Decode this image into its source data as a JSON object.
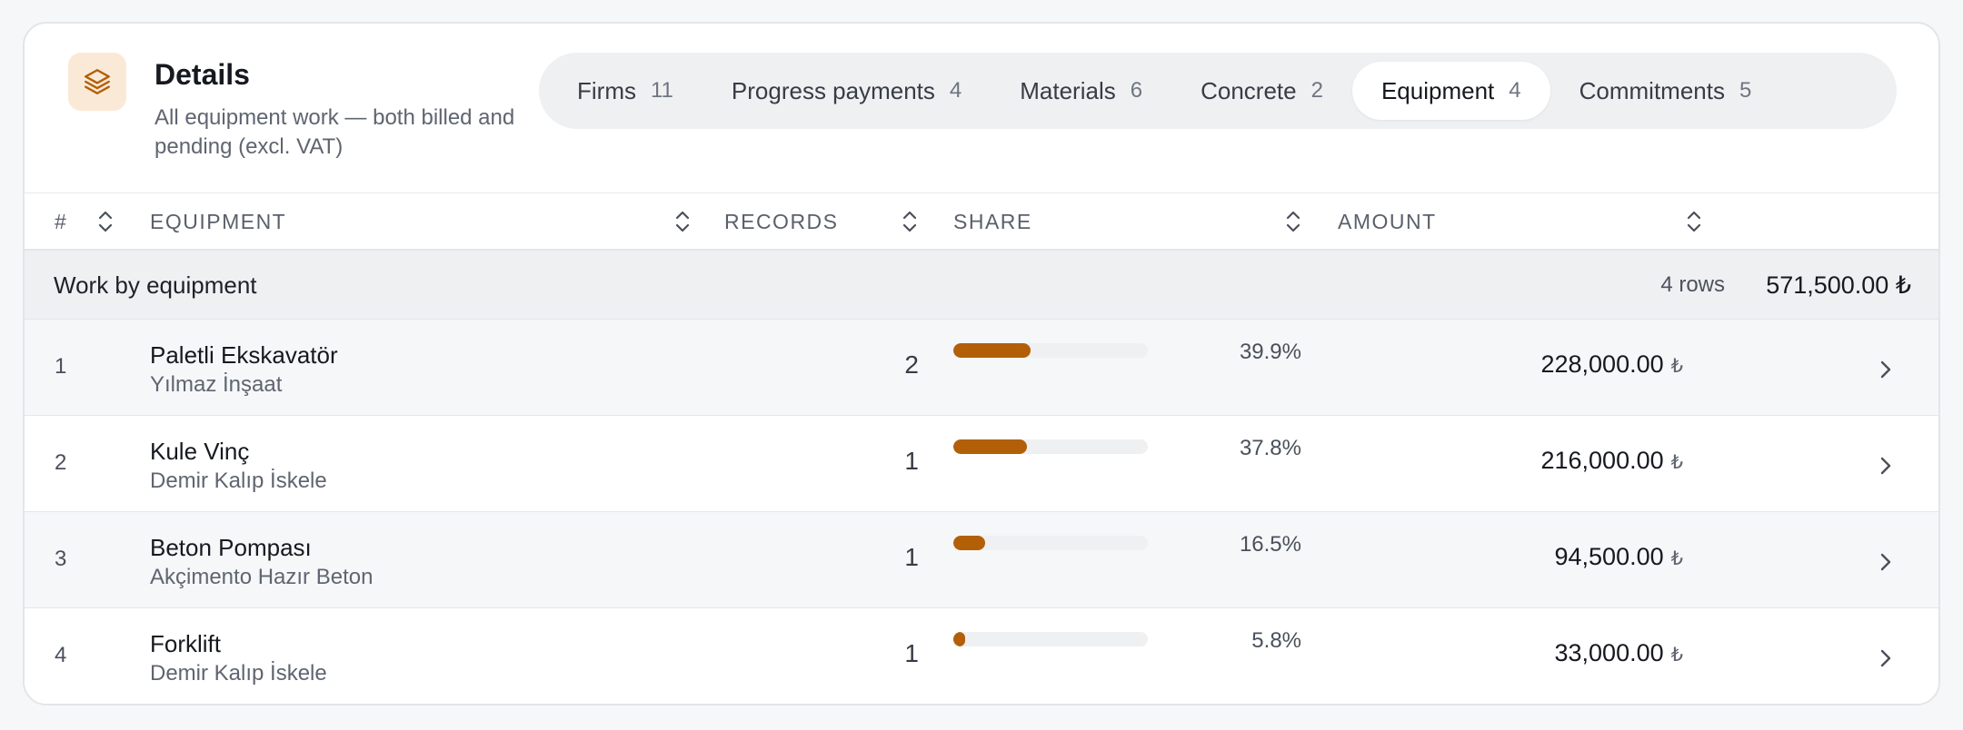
{
  "header": {
    "title": "Details",
    "subtitle": "All equipment work — both billed and pending (excl. VAT)"
  },
  "tabs": [
    {
      "label": "Firms",
      "count": "11",
      "active": false
    },
    {
      "label": "Progress payments",
      "count": "4",
      "active": false
    },
    {
      "label": "Materials",
      "count": "6",
      "active": false
    },
    {
      "label": "Concrete",
      "count": "2",
      "active": false
    },
    {
      "label": "Equipment",
      "count": "4",
      "active": true
    },
    {
      "label": "Commitments",
      "count": "5",
      "active": false
    }
  ],
  "columns": {
    "num": "#",
    "equipment": "EQUIPMENT",
    "records": "RECORDS",
    "share": "SHARE",
    "amount": "AMOUNT"
  },
  "group": {
    "title": "Work by equipment",
    "rows_label": "4 rows",
    "total": "571,500.00 ₺"
  },
  "rows": [
    {
      "num": "1",
      "name": "Paletli Ekskavatör",
      "firm": "Yılmaz İnşaat",
      "records": "2",
      "share_pct": "39.9%",
      "share": 39.9,
      "amount": "228,000.00",
      "currency": "₺"
    },
    {
      "num": "2",
      "name": "Kule Vinç",
      "firm": "Demir Kalıp İskele",
      "records": "1",
      "share_pct": "37.8%",
      "share": 37.8,
      "amount": "216,000.00",
      "currency": "₺"
    },
    {
      "num": "3",
      "name": "Beton Pompası",
      "firm": "Akçimento Hazır Beton",
      "records": "1",
      "share_pct": "16.5%",
      "share": 16.5,
      "amount": "94,500.00",
      "currency": "₺"
    },
    {
      "num": "4",
      "name": "Forklift",
      "firm": "Demir Kalıp İskele",
      "records": "1",
      "share_pct": "5.8%",
      "share": 5.8,
      "amount": "33,000.00",
      "currency": "₺"
    }
  ],
  "icons": {
    "header": "layers-icon",
    "sort": "sort-icon",
    "row_action": "chevron-right-icon"
  },
  "colors": {
    "accent": "#b35f07",
    "icon_bg": "#fbe9d7"
  }
}
